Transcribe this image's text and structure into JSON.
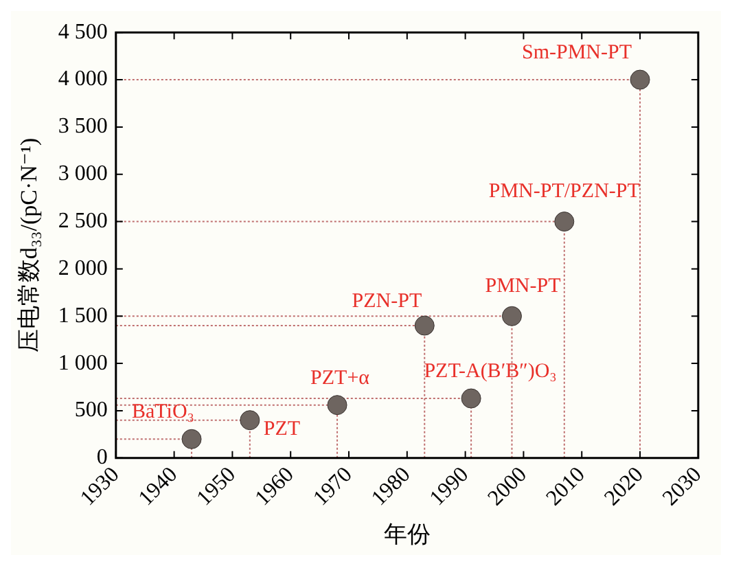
{
  "chart_data": {
    "type": "scatter",
    "xlabel": "年份",
    "ylabel": "压电常数d₃₃/(pC·N⁻¹)",
    "x": [
      1943,
      1953,
      1968,
      1983,
      1991,
      1998,
      2007,
      2020
    ],
    "series": [
      {
        "type": "line",
        "color": "#c07070",
        "line_style": "dotted",
        "marker": "none",
        "x": [
          1930,
          1943
        ],
        "values": [
          200,
          200
        ]
      },
      {
        "type": "line",
        "color": "#c07070",
        "line_style": "dotted",
        "marker": "none",
        "x": [
          1930,
          1953
        ],
        "values": [
          400,
          400
        ]
      },
      {
        "type": "line",
        "color": "#c07070",
        "line_style": "dotted",
        "marker": "none",
        "x": [
          1930,
          1968
        ],
        "values": [
          560,
          560
        ]
      },
      {
        "type": "line",
        "color": "#c07070",
        "line_style": "dotted",
        "marker": "none",
        "x": [
          1930,
          1983
        ],
        "values": [
          1400,
          1400
        ]
      },
      {
        "type": "line",
        "color": "#c07070",
        "line_style": "dotted",
        "marker": "none",
        "x": [
          1930,
          1991
        ],
        "values": [
          630,
          630
        ]
      },
      {
        "type": "line",
        "color": "#c07070",
        "line_style": "dotted",
        "marker": "none",
        "x": [
          1930,
          1998
        ],
        "values": [
          1500,
          1500
        ]
      },
      {
        "type": "line",
        "color": "#c07070",
        "line_style": "dotted",
        "marker": "none",
        "x": [
          1930,
          2007
        ],
        "values": [
          2500,
          2500
        ]
      },
      {
        "type": "line",
        "color": "#c07070",
        "line_style": "dotted",
        "marker": "none",
        "x": [
          1930,
          2020
        ],
        "values": [
          4000,
          4000
        ]
      },
      {
        "type": "line",
        "color": "#c07070",
        "line_style": "dotted",
        "marker": "none",
        "x": [
          1943,
          1943
        ],
        "values": [
          0,
          200
        ]
      },
      {
        "type": "line",
        "color": "#c07070",
        "line_style": "dotted",
        "marker": "none",
        "x": [
          1953,
          1953
        ],
        "values": [
          0,
          400
        ]
      },
      {
        "type": "line",
        "color": "#c07070",
        "line_style": "dotted",
        "marker": "none",
        "x": [
          1968,
          1968
        ],
        "values": [
          0,
          560
        ]
      },
      {
        "type": "line",
        "color": "#c07070",
        "line_style": "dotted",
        "marker": "none",
        "x": [
          1983,
          1983
        ],
        "values": [
          0,
          1400
        ]
      },
      {
        "type": "line",
        "color": "#c07070",
        "line_style": "dotted",
        "marker": "none",
        "x": [
          1991,
          1991
        ],
        "values": [
          0,
          630
        ]
      },
      {
        "type": "line",
        "color": "#c07070",
        "line_style": "dotted",
        "marker": "none",
        "x": [
          1998,
          1998
        ],
        "values": [
          0,
          1500
        ]
      },
      {
        "type": "line",
        "color": "#c07070",
        "line_style": "dotted",
        "marker": "none",
        "x": [
          2007,
          2007
        ],
        "values": [
          0,
          2500
        ]
      },
      {
        "type": "line",
        "color": "#c07070",
        "line_style": "dotted",
        "marker": "none",
        "x": [
          2020,
          2020
        ],
        "values": [
          0,
          4000
        ]
      },
      {
        "color": "#6e6560",
        "values": [
          200,
          400,
          560,
          1400,
          630,
          1500,
          2500,
          4000
        ]
      }
    ],
    "xlim": [
      1930,
      2030
    ],
    "xticks": [
      1930,
      1940,
      1950,
      1960,
      1970,
      1980,
      1990,
      2000,
      2010,
      2020,
      2030
    ],
    "ylim": [
      0,
      4500
    ],
    "yticks": [
      0,
      500,
      {
        "value": 1000,
        "label": "1 000"
      },
      {
        "value": 1500,
        "label": "1 500"
      },
      {
        "value": 2000,
        "label": "2 000"
      },
      {
        "value": 2500,
        "label": "2 500"
      },
      {
        "value": 3000,
        "label": "3 000"
      },
      {
        "value": 3500,
        "label": "3 500"
      },
      {
        "value": 4000,
        "label": "4 000"
      },
      {
        "value": 4500,
        "label": "4 500"
      }
    ],
    "grid": false,
    "legend": false,
    "marker": "circle",
    "annotations": [
      {
        "text": "BaTiO₃",
        "x": 1943,
        "y": 200
      },
      {
        "text": "PZT",
        "x": 1953,
        "y": 400
      },
      {
        "text": "PZT+α",
        "x": 1968,
        "y": 560
      },
      {
        "text": "PZN-PT",
        "x": 1983,
        "y": 1400
      },
      {
        "text": "PZT-A(B′B″)O₃",
        "x": 1991,
        "y": 630
      },
      {
        "text": "PMN-PT",
        "x": 1998,
        "y": 1500
      },
      {
        "text": "PMN-PT/PZN-PT",
        "x": 2007,
        "y": 2500
      },
      {
        "text": "Sm-PMN-PT",
        "x": 2020,
        "y": 4000
      }
    ]
  }
}
